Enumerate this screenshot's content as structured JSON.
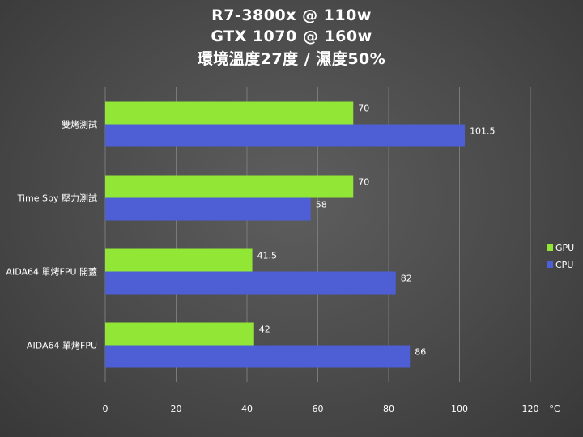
{
  "chart_data": {
    "type": "bar",
    "orientation": "horizontal",
    "title": "R7-3800x  @ 110w",
    "subtitle": "GTX 1070 @ 160w",
    "subtitle2": "環境溫度27度 / 濕度50%",
    "categories": [
      "雙烤測試",
      "Time Spy 壓力測試",
      "AIDA64 單烤FPU 開蓋",
      "AIDA64 單烤FPU"
    ],
    "series": [
      {
        "name": "GPU",
        "values": [
          70,
          70,
          41.5,
          42
        ],
        "labels": [
          "70",
          "70",
          "41.5",
          "42"
        ],
        "color": "#92e636"
      },
      {
        "name": "CPU",
        "values": [
          101.5,
          58,
          82,
          86
        ],
        "labels": [
          "101.5",
          "58",
          "82",
          "86"
        ],
        "color": "#4e5fd6"
      }
    ],
    "xlim": [
      0,
      120
    ],
    "xticks": [
      "0",
      "20",
      "40",
      "60",
      "80",
      "100",
      "120"
    ],
    "xunit": "°C",
    "grid": true,
    "legend_position": "right"
  }
}
